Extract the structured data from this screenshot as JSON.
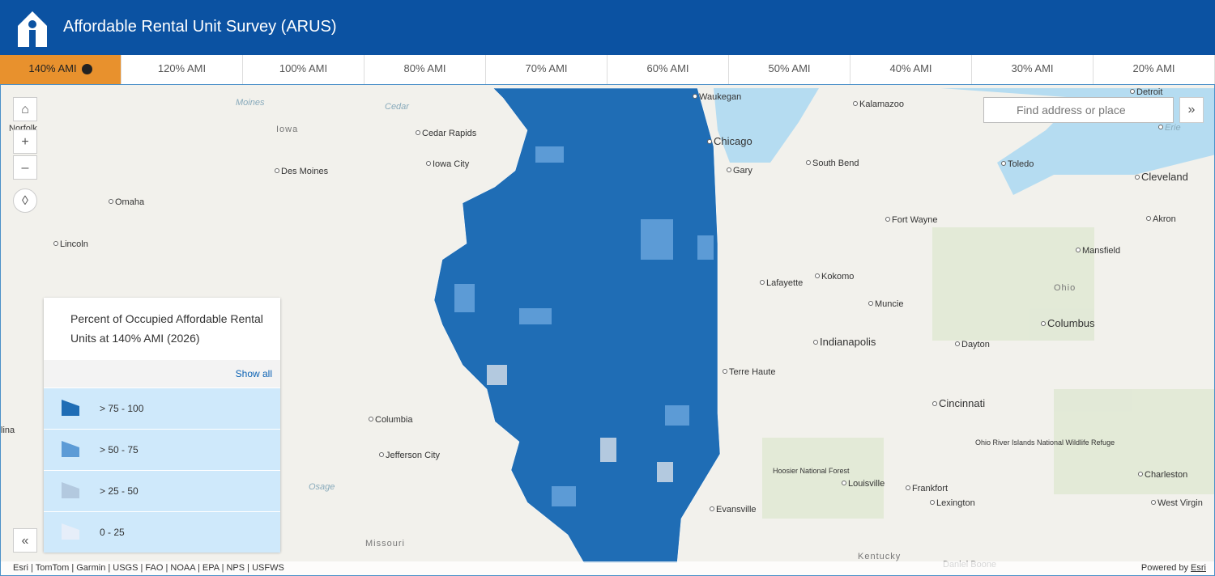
{
  "header": {
    "title": "Affordable Rental Unit Survey (ARUS)"
  },
  "tabs": [
    "140% AMI",
    "120% AMI",
    "100% AMI",
    "80% AMI",
    "70% AMI",
    "60% AMI",
    "50% AMI",
    "40% AMI",
    "30% AMI",
    "20% AMI"
  ],
  "search": {
    "placeholder": "Find address or place"
  },
  "legend": {
    "title": "Percent of Occupied Affordable Rental Units at 140% AMI (2026)",
    "show_all": "Show all",
    "items": [
      {
        "label": "> 75 - 100",
        "color": "#1f6db5"
      },
      {
        "label": "> 50 - 75",
        "color": "#5c9bd6"
      },
      {
        "label": "> 25 - 50",
        "color": "#b3c9df"
      },
      {
        "label": "0 - 25",
        "color": "#e6eef9"
      }
    ]
  },
  "map": {
    "labels": [
      "Waukegan",
      "Kalamazoo",
      "Iowa",
      "Cedar Rapids",
      "Chicago",
      "Des Moines",
      "Iowa City",
      "Gary",
      "South Bend",
      "Toledo",
      "Cleveland",
      "Detroit",
      "Erie",
      "Omaha",
      "Fort Wayne",
      "Akron",
      "Lincoln",
      "Mansfield",
      "Kokomo",
      "Lafayette",
      "Ohio",
      "Muncie",
      "Columbus",
      "Indianapolis",
      "Dayton",
      "Terre Haute",
      "Cincinnati",
      "Columbia",
      "Jefferson City",
      "Louisville",
      "Frankfort",
      "Lexington",
      "Charleston",
      "Evansville",
      "West Virgin",
      "Missouri",
      "Kentucky",
      "Norfolk",
      "Moines",
      "Cedar",
      "Osage",
      "Hoosier National Forest",
      "Ohio River Islands National Wildlife Refuge",
      "Daniel Boone",
      "lina"
    ]
  },
  "attribution": {
    "sources": "Esri | TomTom | Garmin | USGS | FAO | NOAA | EPA | NPS | USFWS",
    "powered_by": "Powered by",
    "esri": "Esri"
  }
}
